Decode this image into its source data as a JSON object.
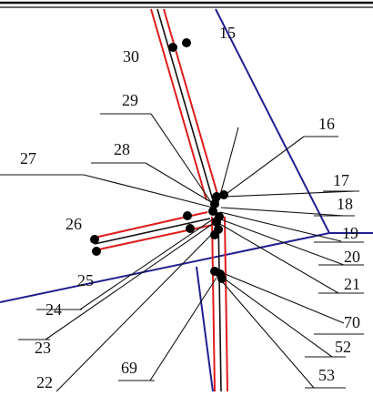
{
  "colors": {
    "boundary": "#1f1f8f",
    "conductor_red": "#e01b1b",
    "conductor_black": "#111111",
    "node": "#000000",
    "text": "#111111"
  },
  "labels": {
    "l15": "15",
    "l16": "16",
    "l17": "17",
    "l18": "18",
    "l19": "19",
    "l20": "20",
    "l21": "21",
    "l22": "22",
    "l23": "23",
    "l24": "24",
    "l25": "25",
    "l26": "26",
    "l27": "27",
    "l28": "28",
    "l29": "29",
    "l30": "30",
    "l52": "52",
    "l53": "53",
    "l69": "69",
    "l70": "70"
  }
}
